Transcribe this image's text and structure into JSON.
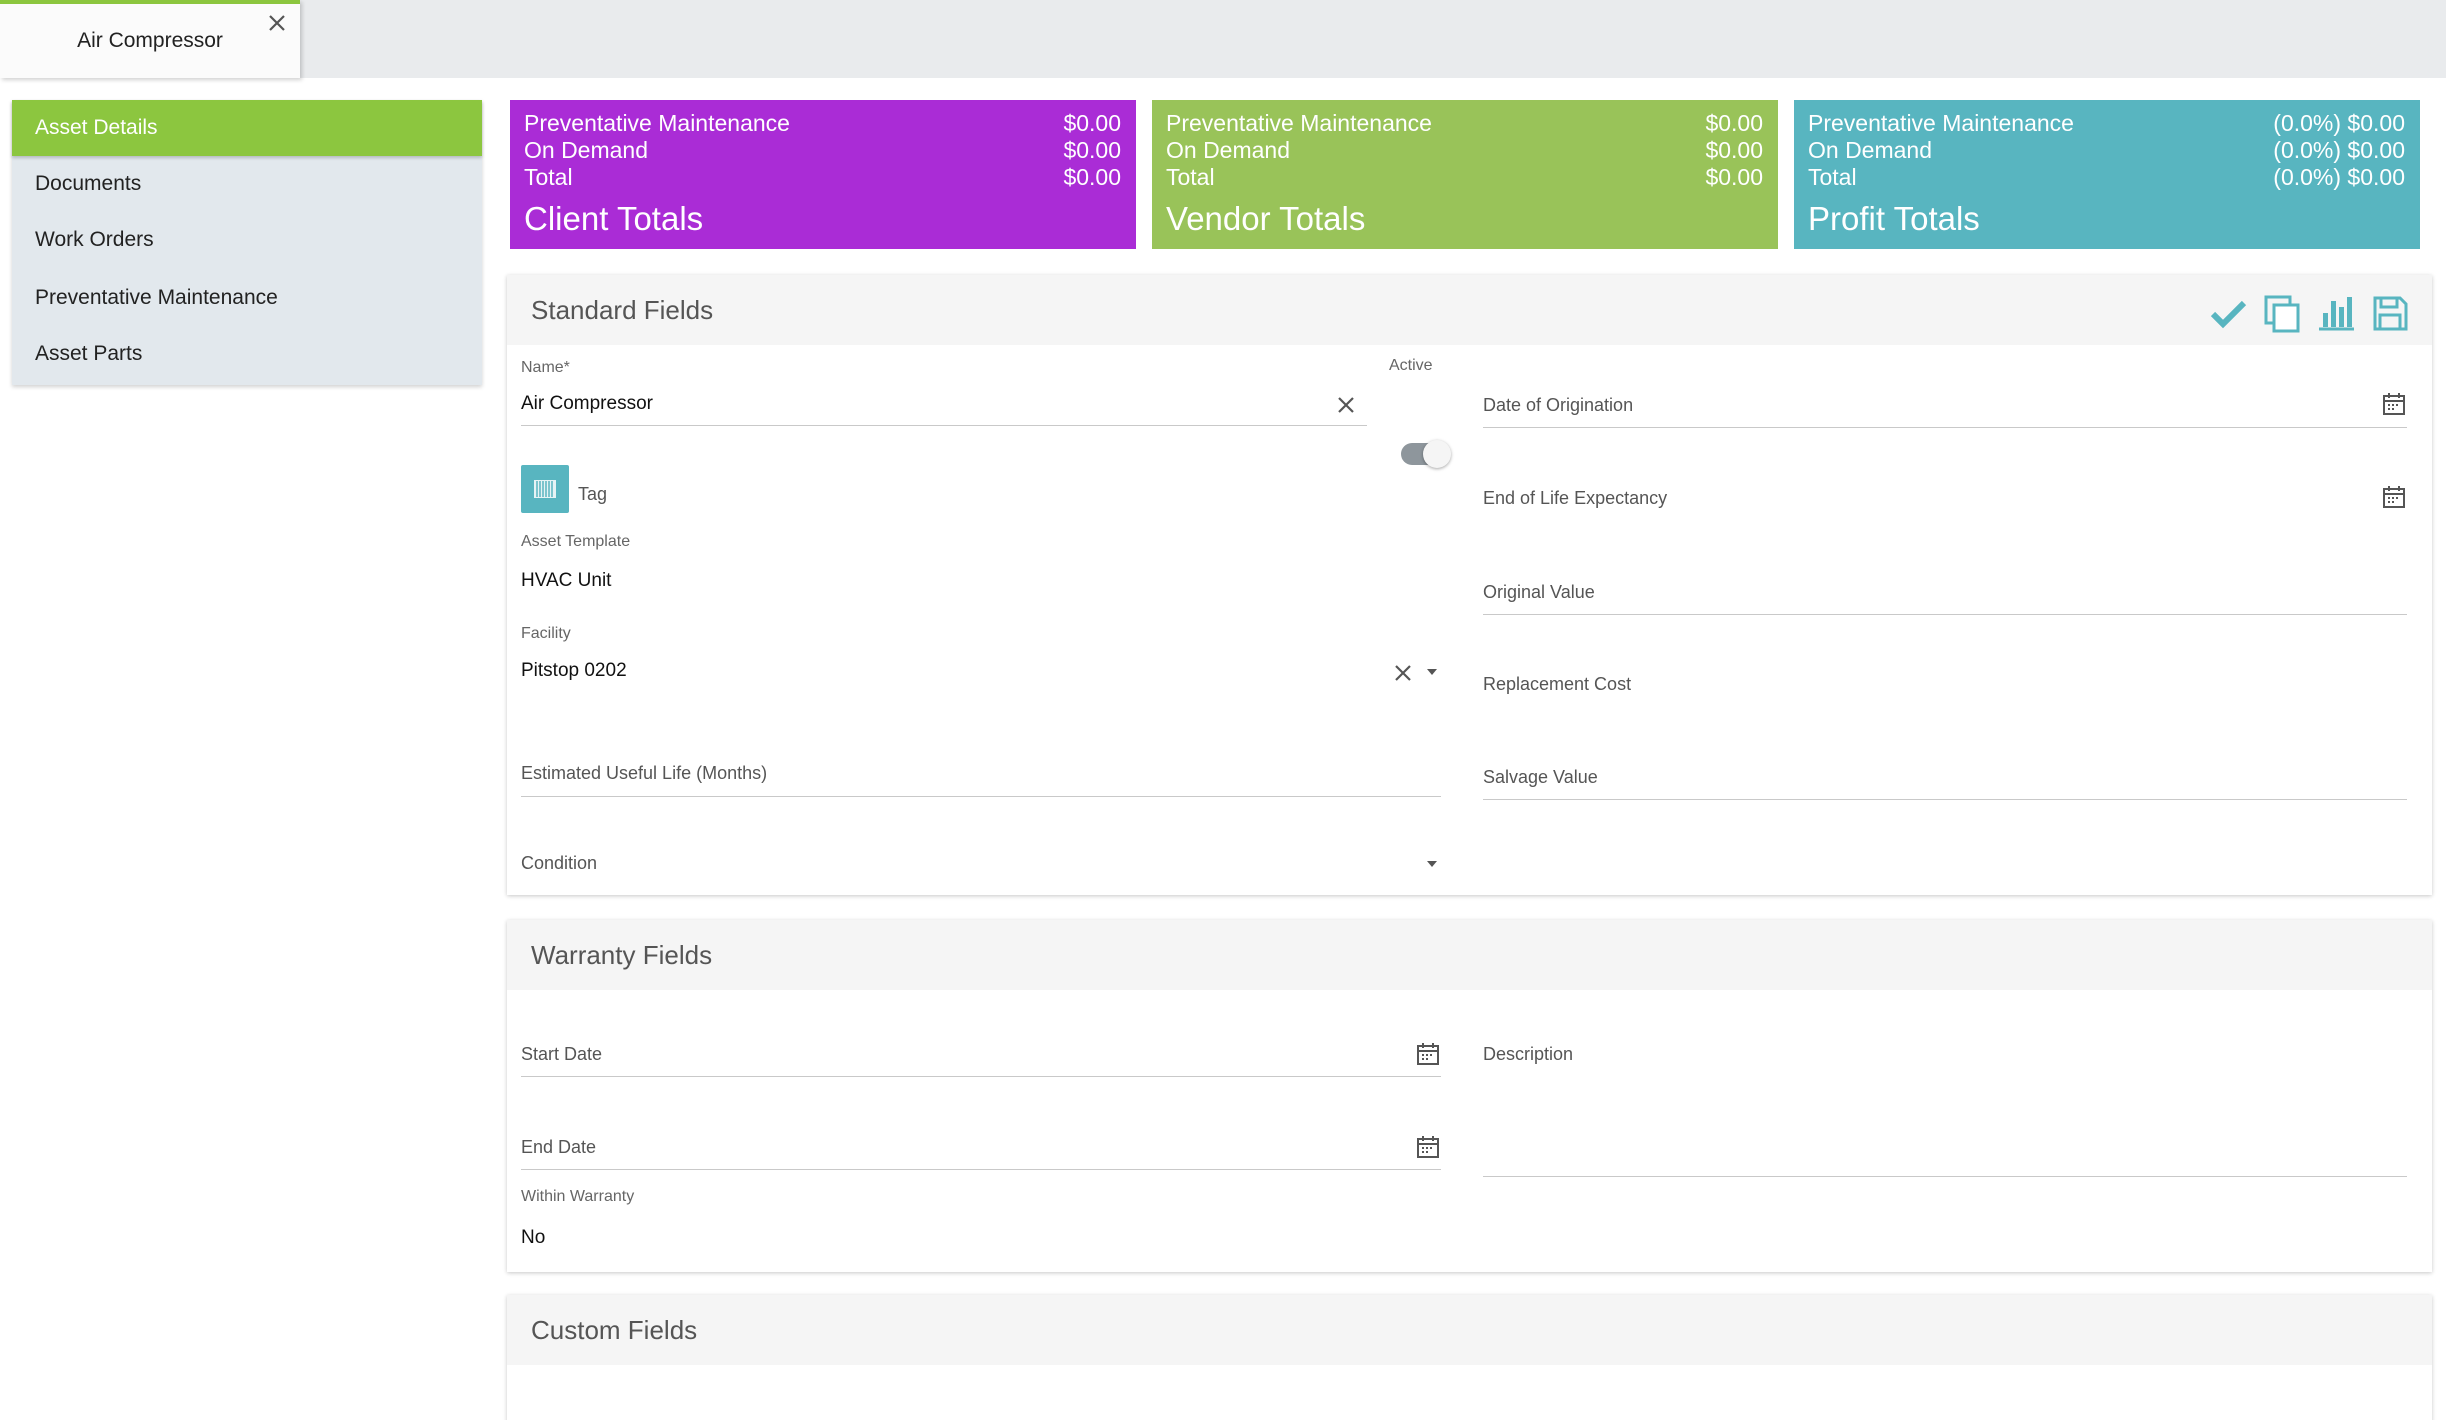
{
  "tab": {
    "title": "Air Compressor"
  },
  "sidebar": {
    "items": [
      {
        "label": "Asset Details"
      },
      {
        "label": "Documents"
      },
      {
        "label": "Work Orders"
      },
      {
        "label": "Preventative Maintenance"
      },
      {
        "label": "Asset Parts"
      }
    ]
  },
  "totals": {
    "client": {
      "title": "Client Totals",
      "rows": [
        {
          "label": "Preventative Maintenance",
          "value": "$0.00"
        },
        {
          "label": "On Demand",
          "value": "$0.00"
        },
        {
          "label": "Total",
          "value": "$0.00"
        }
      ],
      "color": "#aa2cd6"
    },
    "vendor": {
      "title": "Vendor Totals",
      "rows": [
        {
          "label": "Preventative Maintenance",
          "value": "$0.00"
        },
        {
          "label": "On Demand",
          "value": "$0.00"
        },
        {
          "label": "Total",
          "value": "$0.00"
        }
      ],
      "color": "#99c359"
    },
    "profit": {
      "title": "Profit Totals",
      "rows": [
        {
          "label": "Preventative Maintenance",
          "value": "(0.0%) $0.00"
        },
        {
          "label": "On Demand",
          "value": "(0.0%) $0.00"
        },
        {
          "label": "Total",
          "value": "(0.0%) $0.00"
        }
      ],
      "color": "#58b5c0"
    }
  },
  "standard": {
    "title": "Standard Fields",
    "toolbar": [
      "check-icon",
      "copy-icon",
      "bar-chart-icon",
      "save-icon"
    ],
    "name": {
      "label": "Name*",
      "value": "Air Compressor"
    },
    "active": {
      "label": "Active",
      "on": true
    },
    "tag": {
      "label": "Tag"
    },
    "asset_template": {
      "label": "Asset Template",
      "value": "HVAC Unit"
    },
    "facility": {
      "label": "Facility",
      "value": "Pitstop 0202"
    },
    "useful_life": {
      "label": "Estimated Useful Life (Months)"
    },
    "condition": {
      "label": "Condition"
    },
    "date_origination": {
      "label": "Date of Origination"
    },
    "end_of_life": {
      "label": "End of Life Expectancy"
    },
    "original_value": {
      "label": "Original Value"
    },
    "replacement_cost": {
      "label": "Replacement Cost"
    },
    "salvage_value": {
      "label": "Salvage Value"
    }
  },
  "warranty": {
    "title": "Warranty Fields",
    "start_date": {
      "label": "Start Date"
    },
    "end_date": {
      "label": "End Date"
    },
    "within": {
      "label": "Within Warranty",
      "value": "No"
    },
    "description": {
      "label": "Description"
    }
  },
  "custom": {
    "title": "Custom Fields"
  },
  "colors": {
    "accent": "#8cc63f",
    "teal": "#58b5c0"
  }
}
